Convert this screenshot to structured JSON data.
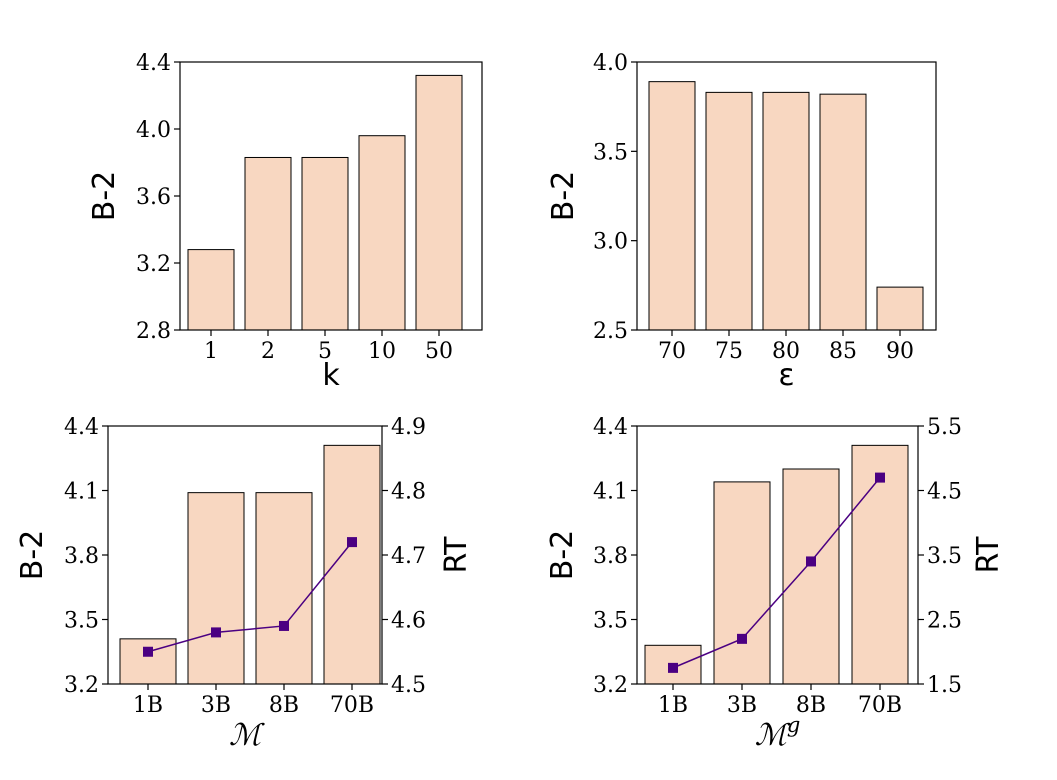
{
  "colors": {
    "bar_fill": "#f8d7c1",
    "line": "#4b0082"
  },
  "chart_data": [
    {
      "type": "bar",
      "title": "",
      "categories": [
        "1",
        "2",
        "5",
        "10",
        "50"
      ],
      "values": [
        3.28,
        3.83,
        3.83,
        3.96,
        4.32
      ],
      "xlabel": "k",
      "ylabel": "B-2",
      "ylim": [
        2.8,
        4.4
      ],
      "yticks": [
        "2.8",
        "3.2",
        "3.6",
        "4.0",
        "4.4"
      ],
      "grid": false
    },
    {
      "type": "bar",
      "title": "",
      "categories": [
        "70",
        "75",
        "80",
        "85",
        "90"
      ],
      "values": [
        3.89,
        3.83,
        3.83,
        3.82,
        2.74
      ],
      "xlabel": "ε",
      "ylabel": "B-2",
      "ylim": [
        2.5,
        4.0
      ],
      "yticks": [
        "2.5",
        "3.0",
        "3.5",
        "4.0"
      ],
      "grid": false
    },
    {
      "type": "bar+line",
      "title": "",
      "categories": [
        "1B",
        "3B",
        "8B",
        "70B"
      ],
      "values": [
        3.41,
        4.09,
        4.09,
        4.31
      ],
      "secondary_values": [
        4.55,
        4.58,
        4.59,
        4.72
      ],
      "xlabel": "ℳ",
      "xlabel_superscript": "",
      "ylabel": "B-2",
      "y2label": "RT",
      "ylim": [
        3.2,
        4.4
      ],
      "y2lim": [
        4.5,
        4.9
      ],
      "yticks": [
        "3.2",
        "3.5",
        "3.8",
        "4.1",
        "4.4"
      ],
      "y2ticks": [
        "4.5",
        "4.6",
        "4.7",
        "4.8",
        "4.9"
      ],
      "grid": false
    },
    {
      "type": "bar+line",
      "title": "",
      "categories": [
        "1B",
        "3B",
        "8B",
        "70B"
      ],
      "values": [
        3.38,
        4.14,
        4.2,
        4.31
      ],
      "secondary_values": [
        1.75,
        2.2,
        3.4,
        4.7
      ],
      "xlabel": "ℳ",
      "xlabel_superscript": "g",
      "ylabel": "B-2",
      "y2label": "RT",
      "ylim": [
        3.2,
        4.4
      ],
      "y2lim": [
        1.5,
        5.5
      ],
      "yticks": [
        "3.2",
        "3.5",
        "3.8",
        "4.1",
        "4.4"
      ],
      "y2ticks": [
        "1.5",
        "2.5",
        "3.5",
        "4.5",
        "5.5"
      ],
      "grid": false
    }
  ]
}
